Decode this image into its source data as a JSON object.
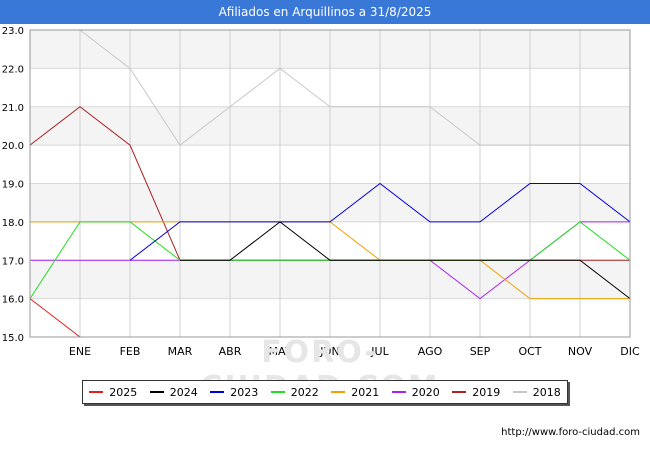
{
  "title": "Afiliados en Arquillinos a 31/8/2025",
  "footer_url": "http://www.foro-ciudad.com",
  "watermark": "FORO-CIUDAD.COM",
  "chart_data": {
    "type": "line",
    "title": "Afiliados en Arquillinos a 31/8/2025",
    "categories": [
      "",
      "ENE",
      "FEB",
      "MAR",
      "ABR",
      "MAY",
      "JUN",
      "JUL",
      "AGO",
      "SEP",
      "OCT",
      "NOV",
      "DIC"
    ],
    "ylim": [
      15,
      23
    ],
    "yticks": [
      "15.0",
      "16.0",
      "17.0",
      "18.0",
      "19.0",
      "20.0",
      "21.0",
      "22.0",
      "23.0"
    ],
    "grid": true,
    "legend_position": "bottom",
    "series": [
      {
        "name": "2025",
        "color": "#e02020",
        "values": [
          16,
          15,
          null,
          null,
          null,
          null,
          null,
          null,
          null,
          null,
          null,
          null,
          null
        ]
      },
      {
        "name": "2024",
        "color": "#000000",
        "values": [
          null,
          null,
          null,
          17,
          17,
          18,
          17,
          17,
          17,
          17,
          17,
          17,
          16
        ]
      },
      {
        "name": "2023",
        "color": "#0000dd",
        "values": [
          null,
          null,
          17,
          18,
          18,
          18,
          18,
          19,
          18,
          18,
          19,
          19,
          18
        ]
      },
      {
        "name": "2022",
        "color": "#22dd22",
        "values": [
          16,
          18,
          18,
          17,
          17,
          17,
          17,
          17,
          17,
          17,
          17,
          18,
          17
        ]
      },
      {
        "name": "2021",
        "color": "#f0a000",
        "values": [
          18,
          18,
          18,
          18,
          18,
          18,
          18,
          17,
          17,
          17,
          16,
          16,
          16
        ]
      },
      {
        "name": "2020",
        "color": "#aa22ee",
        "values": [
          17,
          17,
          17,
          17,
          17,
          17,
          17,
          17,
          17,
          16,
          17,
          18,
          18
        ]
      },
      {
        "name": "2019",
        "color": "#aa2222",
        "values": [
          20,
          21,
          20,
          17,
          17,
          17,
          17,
          17,
          17,
          17,
          17,
          17,
          17
        ]
      },
      {
        "name": "2018",
        "color": "#c8c8c8",
        "values": [
          null,
          23,
          22,
          20,
          21,
          22,
          21,
          21,
          21,
          20,
          20,
          20,
          20
        ]
      }
    ]
  }
}
